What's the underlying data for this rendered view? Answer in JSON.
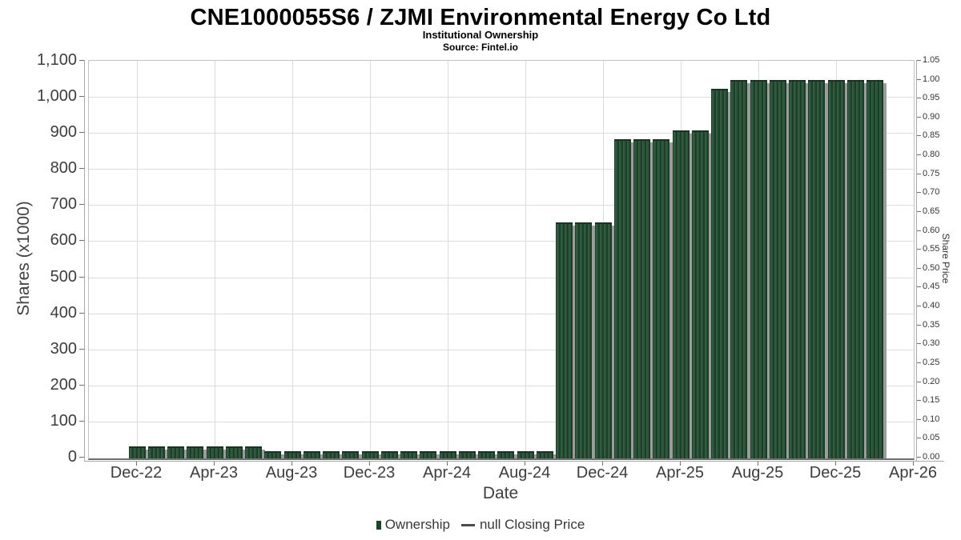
{
  "header": {
    "title": "CNE1000055S6 / ZJMI Environmental Energy Co Ltd",
    "subtitle": "Institutional Ownership",
    "source": "Source: Fintel.io"
  },
  "chart_data": {
    "type": "bar",
    "title": "CNE1000055S6 / ZJMI Environmental Energy Co Ltd",
    "subtitle": "Institutional Ownership",
    "source": "Source: Fintel.io",
    "xlabel": "Date",
    "ylabel_left": "Shares (x1000)",
    "ylabel_right": "Share Price",
    "ylim_left": [
      0,
      1100
    ],
    "ylim_right": [
      0,
      1.05
    ],
    "grid": true,
    "legend_position": "bottom-center",
    "x": [
      "Dec-22",
      "Jan-23",
      "Feb-23",
      "Mar-23",
      "Apr-23",
      "May-23",
      "Jun-23",
      "Jul-23",
      "Aug-23",
      "Sep-23",
      "Oct-23",
      "Nov-23",
      "Dec-23",
      "Jan-24",
      "Feb-24",
      "Mar-24",
      "Apr-24",
      "May-24",
      "Jun-24",
      "Jul-24",
      "Aug-24",
      "Sep-24",
      "Oct-24",
      "Nov-24",
      "Dec-24",
      "Jan-25",
      "Feb-25",
      "Mar-25",
      "Apr-25",
      "May-25",
      "Jun-25",
      "Jul-25",
      "Aug-25",
      "Sep-25",
      "Oct-25",
      "Nov-25",
      "Dec-25",
      "Jan-26",
      "Feb-26"
    ],
    "series": [
      {
        "name": "Ownership",
        "values": [
          28,
          28,
          28,
          28,
          28,
          28,
          28,
          15,
          15,
          15,
          15,
          15,
          15,
          15,
          15,
          15,
          15,
          15,
          15,
          15,
          15,
          15,
          650,
          650,
          650,
          880,
          880,
          880,
          905,
          905,
          1020,
          1045,
          1045,
          1045,
          1045,
          1045,
          1045,
          1045,
          1045
        ]
      },
      {
        "name": "null Closing Price",
        "values": []
      }
    ],
    "x_ticks": [
      "Dec-22",
      "Apr-23",
      "Aug-23",
      "Dec-23",
      "Apr-24",
      "Aug-24",
      "Dec-24",
      "Apr-25",
      "Aug-25",
      "Dec-25",
      "Apr-26"
    ],
    "y_ticks_left": [
      "0",
      "100",
      "200",
      "300",
      "400",
      "500",
      "600",
      "700",
      "800",
      "900",
      "1,000",
      "1,100"
    ],
    "y_ticks_right": [
      "0.00",
      "0.05",
      "0.10",
      "0.15",
      "0.20",
      "0.25",
      "0.30",
      "0.35",
      "0.40",
      "0.45",
      "0.50",
      "0.55",
      "0.60",
      "0.65",
      "0.70",
      "0.75",
      "0.80",
      "0.85",
      "0.90",
      "0.95",
      "1.00",
      "1.05"
    ],
    "legend": [
      {
        "label": "Ownership",
        "marker": "square",
        "color": "#1f4329"
      },
      {
        "label": "null Closing Price",
        "marker": "dash",
        "color": "#4a4a4a"
      }
    ]
  },
  "colors": {
    "bar_fill": "#2a5539",
    "bar_stripe_dark": "#1c3e28",
    "bar_stripe_light": "#356247",
    "bar_shadow": "#9c9c9c",
    "gridline": "#dcdcdc",
    "plot_border": "#c2c2c2",
    "text": "#3d3d3d"
  }
}
